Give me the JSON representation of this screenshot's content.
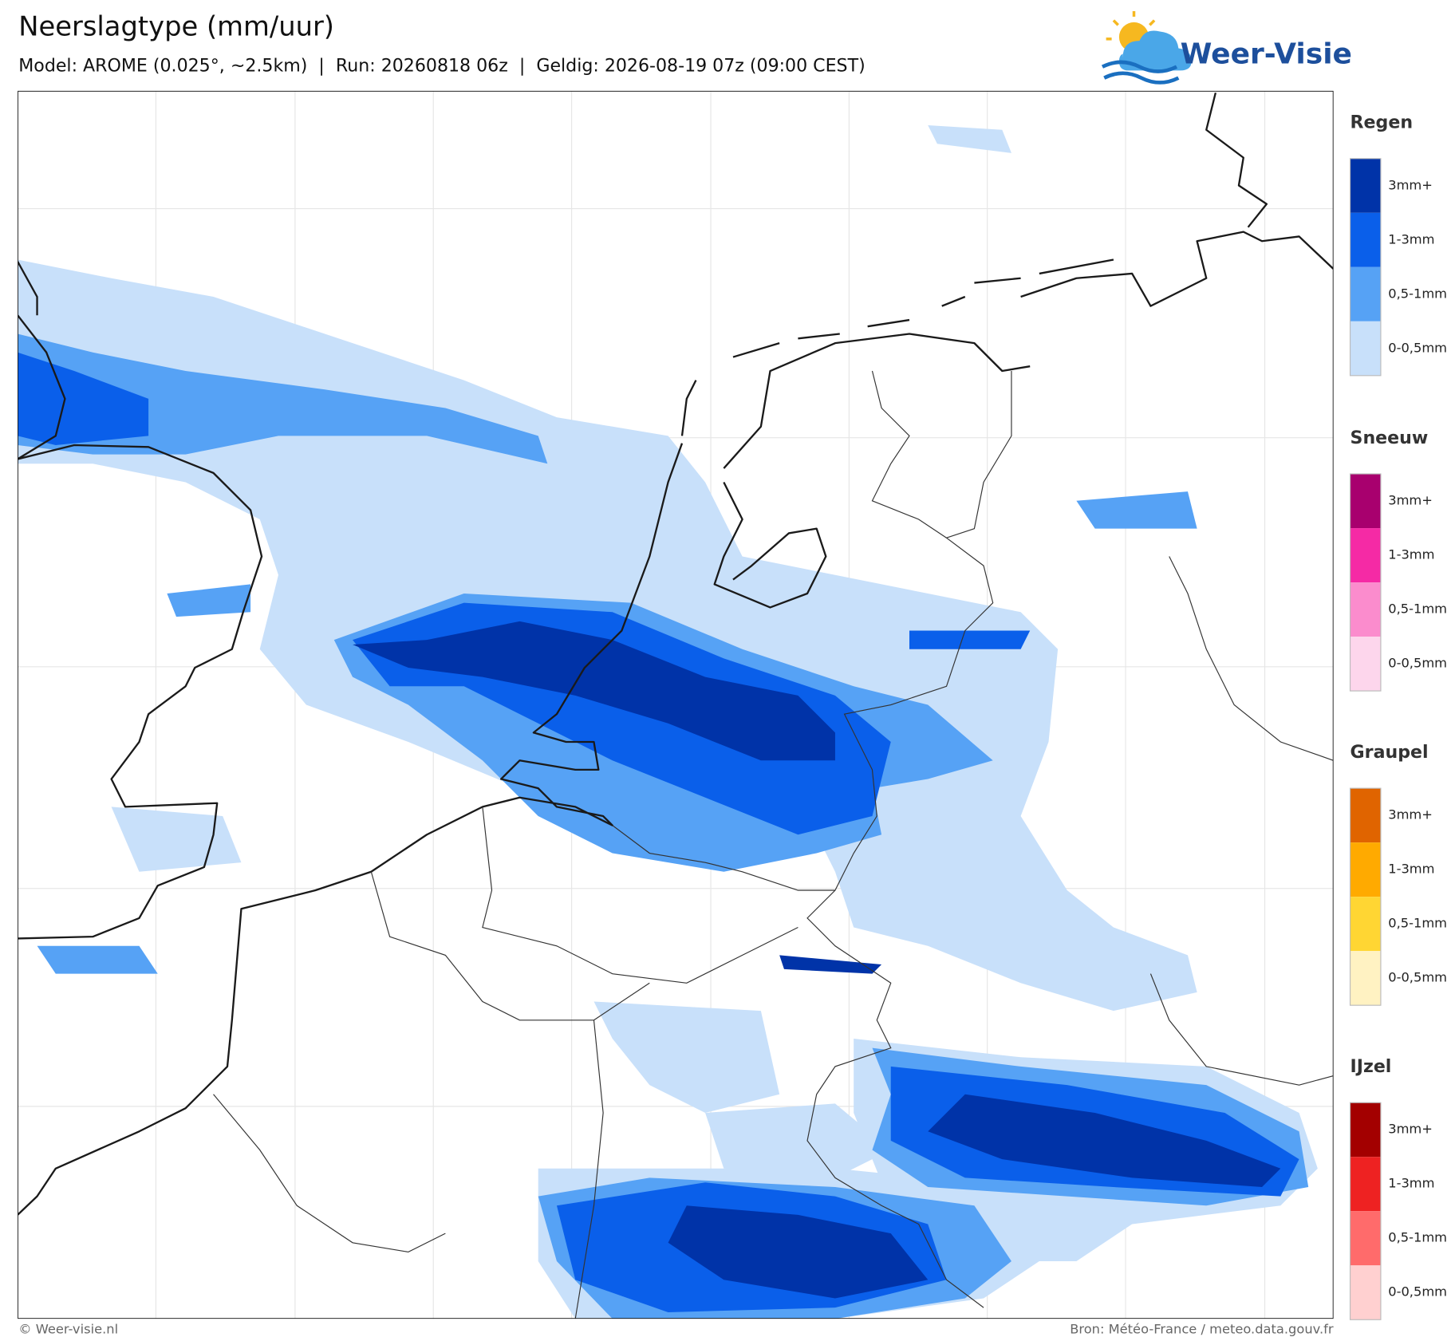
{
  "header": {
    "title": "Neerslagtype (mm/uur)",
    "subtitle": "Model: AROME (0.025°, ~2.5km)  |  Run: 20260818 06z  |  Geldig: 2026-08-19 07z (09:00 CEST)",
    "logo": "Weer-Visie"
  },
  "legend": [
    {
      "title": "Regen",
      "items": [
        {
          "label": "3mm+",
          "color": "#0033a8"
        },
        {
          "label": "1-3mm",
          "color": "#0a5fea"
        },
        {
          "label": "0,5-1mm",
          "color": "#56a2f5"
        },
        {
          "label": "0-0,5mm",
          "color": "#c8e0fa"
        }
      ]
    },
    {
      "title": "Sneeuw",
      "items": [
        {
          "label": "3mm+",
          "color": "#a8006e"
        },
        {
          "label": "1-3mm",
          "color": "#f52aa5"
        },
        {
          "label": "0,5-1mm",
          "color": "#fb8ccd"
        },
        {
          "label": "0-0,5mm",
          "color": "#fdd6ec"
        }
      ]
    },
    {
      "title": "Graupel",
      "items": [
        {
          "label": "3mm+",
          "color": "#e06400"
        },
        {
          "label": "1-3mm",
          "color": "#ffaa00"
        },
        {
          "label": "0,5-1mm",
          "color": "#ffd633"
        },
        {
          "label": "0-0,5mm",
          "color": "#fff2c2"
        }
      ]
    },
    {
      "title": "IJzel",
      "items": [
        {
          "label": "3mm+",
          "color": "#a30000"
        },
        {
          "label": "1-3mm",
          "color": "#ee2222"
        },
        {
          "label": "0,5-1mm",
          "color": "#ff6b6b"
        },
        {
          "label": "0-0,5mm",
          "color": "#ffd0d0"
        }
      ]
    }
  ],
  "footer": {
    "left": "© Weer-visie.nl",
    "right": "Bron: Météo-France / meteo.data.gouv.fr"
  }
}
